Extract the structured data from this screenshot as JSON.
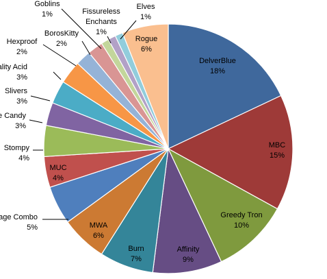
{
  "chart_data": {
    "type": "pie",
    "title": "",
    "start_angle_deg": 0,
    "direction": "clockwise",
    "slices": [
      {
        "label": "DelverBlue",
        "pct_label": "18%",
        "value": 18,
        "color": "#3f689c"
      },
      {
        "label": "MBC",
        "pct_label": "15%",
        "value": 15,
        "color": "#9e3a38"
      },
      {
        "label": "Greedy Tron",
        "pct_label": "10%",
        "value": 10,
        "color": "#7f9a3e"
      },
      {
        "label": "Affinity",
        "pct_label": "9%",
        "value": 9,
        "color": "#664d84"
      },
      {
        "label": "Burn",
        "pct_label": "7%",
        "value": 7,
        "color": "#348599"
      },
      {
        "label": "MWA",
        "pct_label": "6%",
        "value": 6,
        "color": "#cc7a33"
      },
      {
        "label": "Sage Combo",
        "pct_label": "5%",
        "value": 5,
        "color": "#4f7fbd"
      },
      {
        "label": "MUC",
        "pct_label": "4%",
        "value": 4,
        "color": "#c0504d"
      },
      {
        "label": "Stompy",
        "pct_label": "4%",
        "value": 4,
        "color": "#9bbb59"
      },
      {
        "label": "Eye Candy",
        "pct_label": "3%",
        "value": 3,
        "color": "#8064a2"
      },
      {
        "label": "Slivers",
        "pct_label": "3%",
        "value": 3,
        "color": "#4bacc6"
      },
      {
        "label": "Reality Acid",
        "pct_label": "3%",
        "value": 3,
        "color": "#f79646"
      },
      {
        "label": "Hexproof",
        "pct_label": "2%",
        "value": 2,
        "color": "#95b3d7"
      },
      {
        "label": "BorosKitty",
        "pct_label": "2%",
        "value": 2,
        "color": "#d99594"
      },
      {
        "label": "Goblins",
        "pct_label": "1%",
        "value": 1,
        "color": "#c3d69b"
      },
      {
        "label": "Fissureless Enchants",
        "pct_label": "1%",
        "value": 1,
        "color": "#b2a1c7"
      },
      {
        "label": "Elves",
        "pct_label": "1%",
        "value": 1,
        "color": "#92cddc"
      },
      {
        "label": "Rogue",
        "pct_label": "6%",
        "value": 6,
        "color": "#fabf8f"
      }
    ]
  }
}
